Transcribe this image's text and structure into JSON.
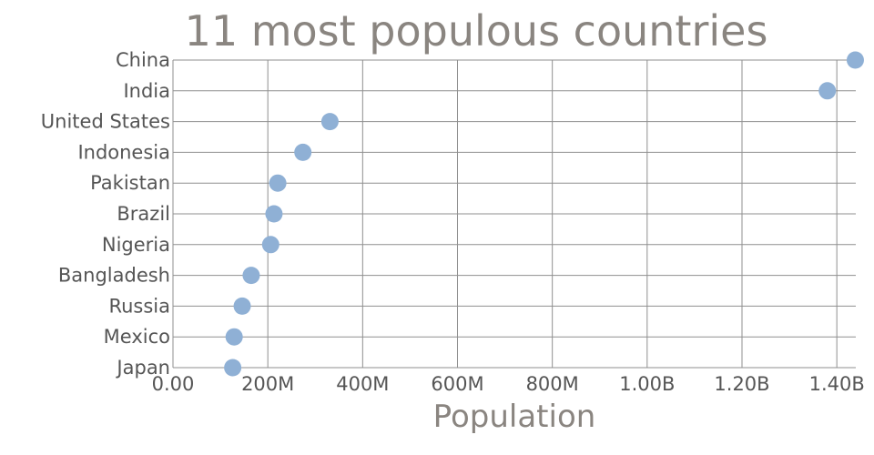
{
  "chart_data": {
    "type": "scatter",
    "title": "11 most populous countries",
    "xlabel": "Population",
    "ylabel": "",
    "xlim": [
      0,
      1440000000
    ],
    "xticks": [
      0,
      200000000,
      400000000,
      600000000,
      800000000,
      1000000000,
      1200000000,
      1400000000
    ],
    "xtick_labels": [
      "0.00",
      "200M",
      "400M",
      "600M",
      "800M",
      "1.00B",
      "1.20B",
      "1.40B"
    ],
    "categories": [
      "China",
      "India",
      "United States",
      "Indonesia",
      "Pakistan",
      "Brazil",
      "Nigeria",
      "Bangladesh",
      "Russia",
      "Mexico",
      "Japan"
    ],
    "values": [
      1439000000,
      1380000000,
      331000000,
      274000000,
      221000000,
      213000000,
      206000000,
      165000000,
      146000000,
      129000000,
      126000000
    ],
    "grid": true,
    "legend": "none",
    "marker_color": "#8fb0d5"
  }
}
